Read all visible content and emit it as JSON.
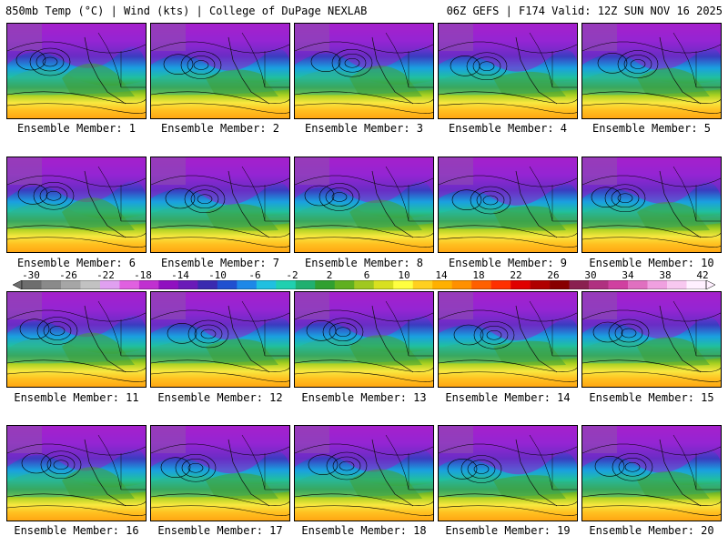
{
  "header": {
    "left_title": "850mb Temp (°C) | Wind (kts) | College of DuPage NEXLAB",
    "right_title": "06Z GEFS | F174 Valid: 12Z SUN NOV 16 2025"
  },
  "panels": [
    {
      "caption": "Ensemble Member: 1"
    },
    {
      "caption": "Ensemble Member: 2"
    },
    {
      "caption": "Ensemble Member: 3"
    },
    {
      "caption": "Ensemble Member: 4"
    },
    {
      "caption": "Ensemble Member: 5"
    },
    {
      "caption": "Ensemble Member: 6"
    },
    {
      "caption": "Ensemble Member: 7"
    },
    {
      "caption": "Ensemble Member: 8"
    },
    {
      "caption": "Ensemble Member: 9"
    },
    {
      "caption": "Ensemble Member: 10"
    },
    {
      "caption": "Ensemble Member: 11"
    },
    {
      "caption": "Ensemble Member: 12"
    },
    {
      "caption": "Ensemble Member: 13"
    },
    {
      "caption": "Ensemble Member: 14"
    },
    {
      "caption": "Ensemble Member: 15"
    },
    {
      "caption": "Ensemble Member: 16"
    },
    {
      "caption": "Ensemble Member: 17"
    },
    {
      "caption": "Ensemble Member: 18"
    },
    {
      "caption": "Ensemble Member: 19"
    },
    {
      "caption": "Ensemble Member: 20"
    }
  ],
  "colorbar": {
    "labels": [
      "-30",
      "-26",
      "-22",
      "-18",
      "-14",
      "-10",
      "-6",
      "-2",
      "2",
      "6",
      "10",
      "14",
      "18",
      "22",
      "26",
      "30",
      "34",
      "38",
      "42"
    ],
    "colors": [
      "#6e6e6e",
      "#8a8a8a",
      "#a6a6a6",
      "#c2c2c2",
      "#e0a0f0",
      "#e060e0",
      "#c030d0",
      "#9010c0",
      "#6a1ab8",
      "#3a2ab0",
      "#2050d0",
      "#1e88e8",
      "#20c0e0",
      "#20d0b0",
      "#20b070",
      "#30a030",
      "#60b020",
      "#a0c820",
      "#d8e020",
      "#ffff40",
      "#ffd020",
      "#ffb000",
      "#ff9000",
      "#ff6000",
      "#ff3000",
      "#e00000",
      "#b00000",
      "#880000",
      "#8a2050",
      "#b03080",
      "#d040a0",
      "#e070c0",
      "#f0a0e0",
      "#f8c8f0",
      "#fff0ff"
    ]
  }
}
